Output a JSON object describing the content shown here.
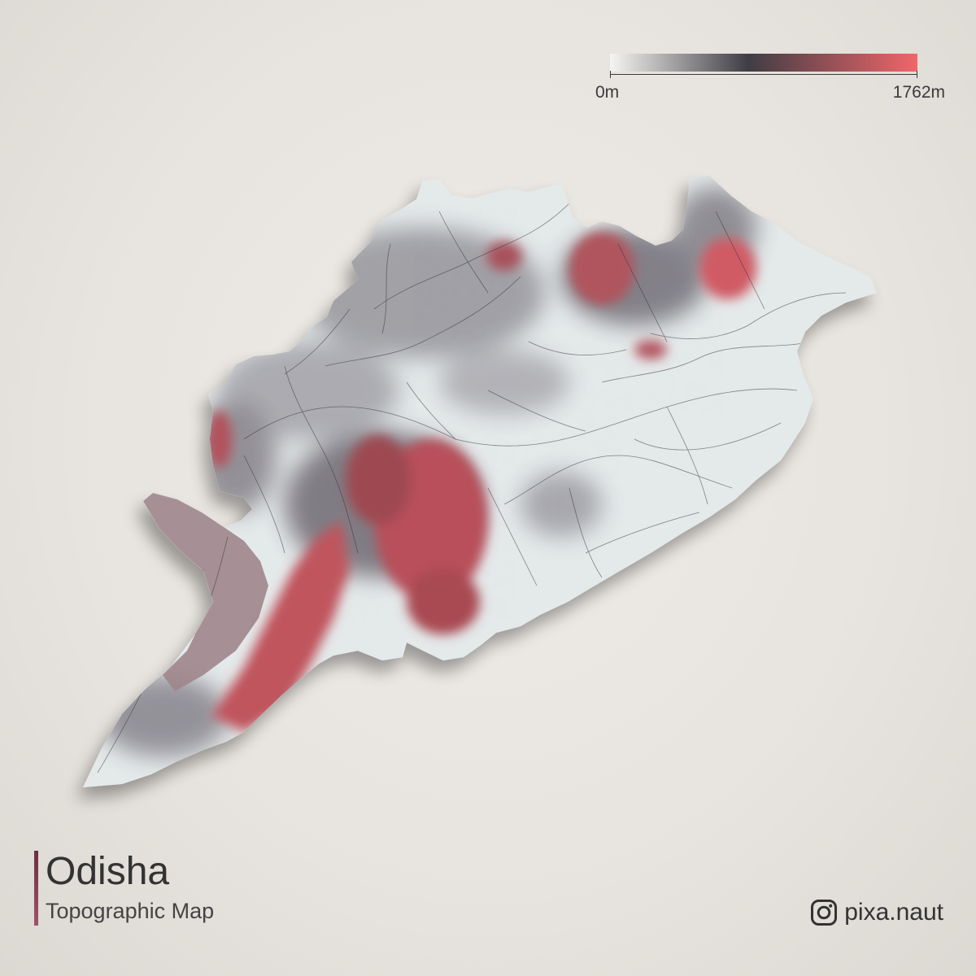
{
  "legend": {
    "min_label": "0m",
    "max_label": "1762m",
    "gradient_colors": [
      "#f7f5f2",
      "#3f3d44",
      "#f0666a"
    ]
  },
  "title": "Odisha",
  "subtitle": "Topographic Map",
  "credit": {
    "handle": "pixa.naut",
    "icon": "instagram-icon"
  },
  "colors": {
    "background": "#e9e6e1",
    "title_rule": "#8a3f58",
    "lowland": "#e6ebec",
    "midland": "#7a7a80",
    "highland": "#c3545e"
  }
}
